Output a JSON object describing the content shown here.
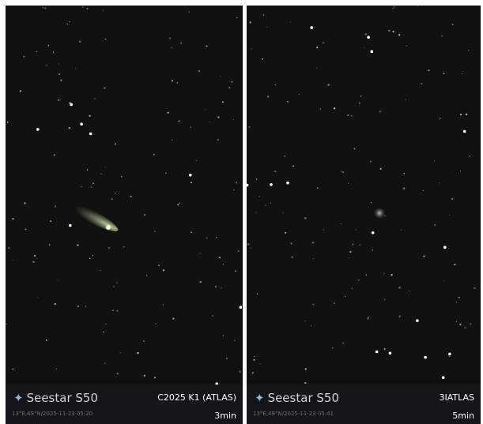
{
  "panels": [
    {
      "brand": "Seestar S50",
      "object": "C2025 K1 (ATLAS)",
      "meta": "13°E,49°N/2025-11-23 05:20",
      "exposure": "3min"
    },
    {
      "brand": "Seestar S50",
      "object": "3IATLAS",
      "meta": "13°E,49°N/2025-11-23 05:41",
      "exposure": "5min"
    }
  ]
}
